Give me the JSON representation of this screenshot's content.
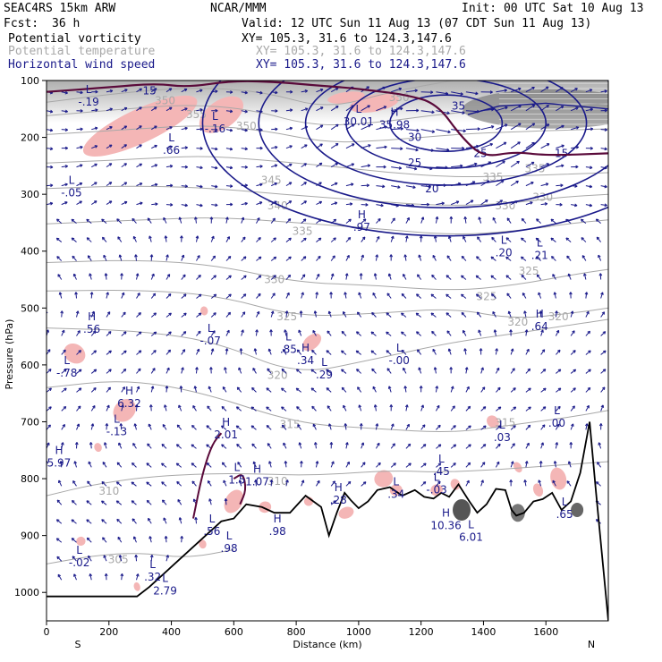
{
  "header": {
    "model": "SEAC4RS 15km ARW",
    "center": "NCAR/MMM",
    "init": "Init: 00 UTC Sat 10 Aug 13",
    "fcst_label": "Fcst:",
    "fcst_value": "36 h",
    "valid": "Valid: 12 UTC Sun 11 Aug 13 (07 CDT Sun 11 Aug 13)",
    "field1": "Potential vorticity",
    "field1_xy": "XY= 105.3, 31.6 to 124.3,147.6",
    "field2": "Potential temperature",
    "field2_xy": "XY= 105.3, 31.6 to 124.3,147.6",
    "field3": "Horizontal wind speed",
    "field3_xy": "XY= 105.3, 31.6 to 124.3,147.6"
  },
  "colors": {
    "pv_fill": "#f4b6b6",
    "theta": "#a8a8a8",
    "wind": "#1a1a8a",
    "pv_line": "#5a0a3a",
    "terrain": "#000000"
  },
  "chart_data": {
    "type": "cross-section",
    "xlabel": "Distance (km)",
    "ylabel": "Pressure (hPa)",
    "xlim": [
      0,
      1800
    ],
    "ylim": [
      1050,
      100
    ],
    "x_ticks": [
      "0",
      "200",
      "400",
      "600",
      "800",
      "1000",
      "1200",
      "1400",
      "1600"
    ],
    "y_ticks": [
      "100",
      "200",
      "300",
      "400",
      "500",
      "600",
      "700",
      "800",
      "900",
      "1000"
    ],
    "left_end": "S",
    "right_end": "N",
    "theta_labels": [
      {
        "x": 380,
        "p": 135,
        "text": "350"
      },
      {
        "x": 480,
        "p": 160,
        "text": "355"
      },
      {
        "x": 640,
        "p": 180,
        "text": "350"
      },
      {
        "x": 720,
        "p": 275,
        "text": "345"
      },
      {
        "x": 740,
        "p": 320,
        "text": "340"
      },
      {
        "x": 820,
        "p": 365,
        "text": "335"
      },
      {
        "x": 730,
        "p": 450,
        "text": "330"
      },
      {
        "x": 770,
        "p": 515,
        "text": "325"
      },
      {
        "x": 740,
        "p": 618,
        "text": "320"
      },
      {
        "x": 780,
        "p": 705,
        "text": "315"
      },
      {
        "x": 740,
        "p": 805,
        "text": "310"
      },
      {
        "x": 200,
        "p": 822,
        "text": "310"
      },
      {
        "x": 230,
        "p": 942,
        "text": "305"
      },
      {
        "x": 1470,
        "p": 320,
        "text": "330"
      },
      {
        "x": 1590,
        "p": 305,
        "text": "330"
      },
      {
        "x": 1545,
        "p": 435,
        "text": "325"
      },
      {
        "x": 1410,
        "p": 480,
        "text": "325"
      },
      {
        "x": 1510,
        "p": 525,
        "text": "320"
      },
      {
        "x": 1640,
        "p": 515,
        "text": "320"
      },
      {
        "x": 1565,
        "p": 255,
        "text": "335"
      },
      {
        "x": 1430,
        "p": 270,
        "text": "335"
      },
      {
        "x": 1470,
        "p": 702,
        "text": "315"
      },
      {
        "x": 1130,
        "p": 130,
        "text": "350"
      }
    ],
    "wind_labels": [
      {
        "x": 1320,
        "p": 145,
        "text": "35"
      },
      {
        "x": 1180,
        "p": 200,
        "text": "30"
      },
      {
        "x": 1180,
        "p": 245,
        "text": "25"
      },
      {
        "x": 1390,
        "p": 228,
        "text": "25"
      },
      {
        "x": 1235,
        "p": 290,
        "text": "20"
      },
      {
        "x": 1650,
        "p": 228,
        "text": "15"
      },
      {
        "x": 330,
        "p": 118,
        "text": "15"
      }
    ],
    "extrema": [
      {
        "x": 135,
        "p": 125,
        "type": "L",
        "value": "-.19"
      },
      {
        "x": 540,
        "p": 172,
        "type": "L",
        "value": "-.16"
      },
      {
        "x": 400,
        "p": 210,
        "type": "L",
        "value": ".66"
      },
      {
        "x": 80,
        "p": 285,
        "type": "L",
        "value": "-.05"
      },
      {
        "x": 1010,
        "p": 345,
        "type": "H",
        "value": ".97"
      },
      {
        "x": 1000,
        "p": 160,
        "type": "L",
        "value": "30.01"
      },
      {
        "x": 1115,
        "p": 165,
        "type": "H",
        "value": "35.98"
      },
      {
        "x": 1465,
        "p": 390,
        "type": "L",
        "value": ".20"
      },
      {
        "x": 1580,
        "p": 395,
        "type": "L",
        "value": ".21"
      },
      {
        "x": 525,
        "p": 545,
        "type": "L",
        "value": "-.07"
      },
      {
        "x": 145,
        "p": 525,
        "type": "H",
        "value": ".56"
      },
      {
        "x": 1580,
        "p": 520,
        "type": "H",
        "value": ".64"
      },
      {
        "x": 775,
        "p": 560,
        "type": "L",
        "value": ".85"
      },
      {
        "x": 830,
        "p": 580,
        "type": "H",
        "value": ".34"
      },
      {
        "x": 1130,
        "p": 580,
        "type": "L",
        "value": "-.00"
      },
      {
        "x": 890,
        "p": 605,
        "type": "L",
        "value": ".29"
      },
      {
        "x": 65,
        "p": 602,
        "type": "L",
        "value": "-.78"
      },
      {
        "x": 265,
        "p": 655,
        "type": "H",
        "value": "6.32"
      },
      {
        "x": 225,
        "p": 705,
        "type": "L",
        "value": "-.13"
      },
      {
        "x": 1460,
        "p": 715,
        "type": "L",
        "value": ".03"
      },
      {
        "x": 1635,
        "p": 690,
        "type": "L",
        "value": ".00"
      },
      {
        "x": 575,
        "p": 710,
        "type": "H",
        "value": "2.01"
      },
      {
        "x": 40,
        "p": 760,
        "type": "H",
        "value": "5.97"
      },
      {
        "x": 610,
        "p": 790,
        "type": "L",
        "value": "1.5"
      },
      {
        "x": 675,
        "p": 793,
        "type": "H",
        "value": "1.07"
      },
      {
        "x": 1265,
        "p": 775,
        "type": "L",
        "value": ".45"
      },
      {
        "x": 1250,
        "p": 807,
        "type": "L",
        "value": "-.03"
      },
      {
        "x": 1120,
        "p": 815,
        "type": "L",
        "value": ".34"
      },
      {
        "x": 935,
        "p": 825,
        "type": "H",
        "value": ".28"
      },
      {
        "x": 1280,
        "p": 870,
        "type": "H",
        "value": "10.36"
      },
      {
        "x": 1360,
        "p": 890,
        "type": "L",
        "value": "6.01"
      },
      {
        "x": 1660,
        "p": 850,
        "type": "L",
        "value": ".65"
      },
      {
        "x": 530,
        "p": 880,
        "type": "L",
        "value": ".56"
      },
      {
        "x": 585,
        "p": 910,
        "type": "L",
        "value": ".98"
      },
      {
        "x": 740,
        "p": 880,
        "type": "H",
        "value": ".98"
      },
      {
        "x": 105,
        "p": 935,
        "type": "L",
        "value": "-.02"
      },
      {
        "x": 340,
        "p": 960,
        "type": "L",
        "value": ".32"
      },
      {
        "x": 380,
        "p": 985,
        "type": "L",
        "value": "2.79"
      }
    ]
  }
}
